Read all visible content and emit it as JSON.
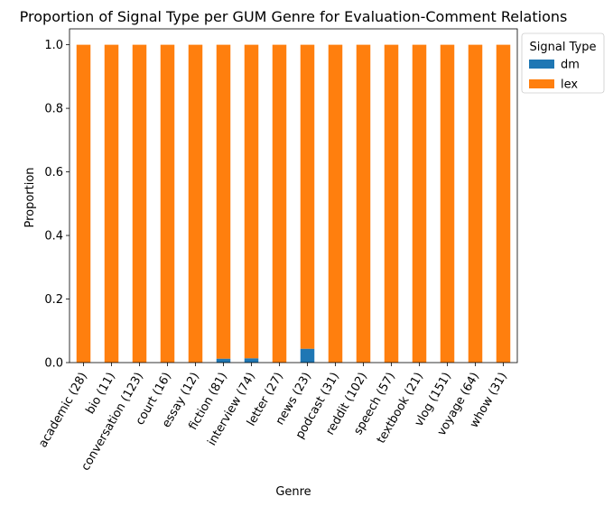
{
  "chart_data": {
    "type": "bar",
    "stacked": true,
    "title": "Proportion of Signal Type per GUM Genre for Evaluation-Comment Relations",
    "xlabel": "Genre",
    "ylabel": "Proportion",
    "ylim": [
      0,
      1.05
    ],
    "yticks": [
      "0.0",
      "0.2",
      "0.4",
      "0.6",
      "0.8",
      "1.0"
    ],
    "ytick_values": [
      0,
      0.2,
      0.4,
      0.6,
      0.8,
      1.0
    ],
    "categories": [
      "academic (28)",
      "bio (11)",
      "conversation (123)",
      "court (16)",
      "essay (12)",
      "fiction (81)",
      "interview (74)",
      "letter (27)",
      "news (23)",
      "podcast (31)",
      "reddit (102)",
      "speech (57)",
      "textbook (21)",
      "vlog (151)",
      "voyage (64)",
      "whow (31)"
    ],
    "series": [
      {
        "name": "dm",
        "color": "#1f77b4",
        "values": [
          0,
          0,
          0,
          0,
          0,
          0.0123,
          0.0135,
          0,
          0.0435,
          0,
          0,
          0,
          0,
          0,
          0,
          0
        ]
      },
      {
        "name": "lex",
        "color": "#ff7f0e",
        "values": [
          1,
          1,
          1,
          1,
          1,
          0.9877,
          0.9865,
          1,
          0.9565,
          1,
          1,
          1,
          1,
          1,
          1,
          1
        ]
      }
    ],
    "legend": {
      "title": "Signal Type",
      "placement": "outside top-right"
    },
    "grid": false
  }
}
